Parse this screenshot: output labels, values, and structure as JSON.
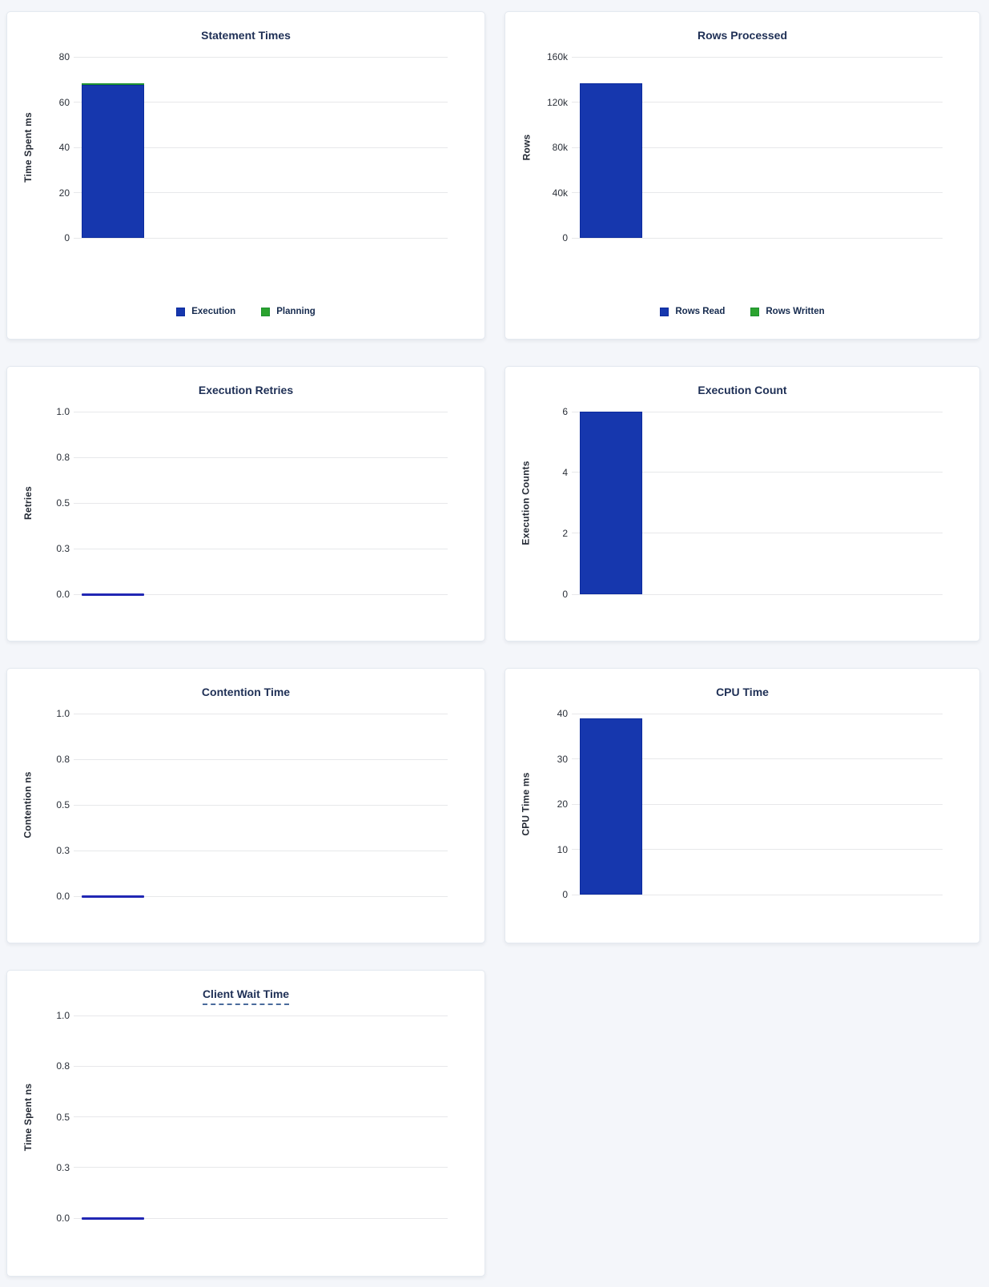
{
  "page": {
    "background_color": "#f4f6fa",
    "card_color": "#ffffff"
  },
  "colors": {
    "blue": "#1637ae",
    "blue_border": "#0c2b9e",
    "green": "#2ba32f",
    "green_border": "#1f9230",
    "zero_line": "#2127b4",
    "title_text": "#1e2f55",
    "tick_text": "#2b3039",
    "axis_label_text": "#242a35",
    "gridline": "#e7e8ea"
  },
  "chart_data": [
    {
      "id": "statement-times",
      "type": "bar",
      "title": "Statement Times",
      "ylabel": "Time Spent ms",
      "ymax": 80,
      "ymin": 0,
      "grid": true,
      "yticks": [
        "80",
        "60",
        "40",
        "20",
        "0"
      ],
      "series": [
        {
          "name": "Execution",
          "value": 67.5,
          "color": "blue"
        },
        {
          "name": "Planning",
          "value": 0.6,
          "color": "green"
        }
      ],
      "stacked": true,
      "legend_position": "bottom",
      "legend_items": [
        {
          "label": "Execution",
          "color": "blue"
        },
        {
          "label": "Planning",
          "color": "green"
        }
      ]
    },
    {
      "id": "rows-processed",
      "type": "bar",
      "title": "Rows Processed",
      "ylabel": "Rows",
      "ymax": 160000,
      "ymin": 0,
      "grid": true,
      "yticks": [
        "160k",
        "120k",
        "80k",
        "40k",
        "0"
      ],
      "series": [
        {
          "name": "Rows Read",
          "value": 137000,
          "color": "blue"
        },
        {
          "name": "Rows Written",
          "value": 0,
          "color": "green"
        }
      ],
      "stacked": true,
      "legend_position": "bottom",
      "legend_items": [
        {
          "label": "Rows Read",
          "color": "blue"
        },
        {
          "label": "Rows Written",
          "color": "green"
        }
      ]
    },
    {
      "id": "execution-retries",
      "type": "bar",
      "title": "Execution Retries",
      "ylabel": "Retries",
      "ymax": 1.0,
      "ymin": 0,
      "grid": true,
      "yticks": [
        "1.0",
        "0.8",
        "0.5",
        "0.3",
        "0.0"
      ],
      "series": [
        {
          "name": "Retries",
          "value": 0,
          "color": "blue"
        }
      ]
    },
    {
      "id": "execution-count",
      "type": "bar",
      "title": "Execution Count",
      "ylabel": "Execution Counts",
      "ymax": 6,
      "ymin": 0,
      "grid": true,
      "yticks": [
        "6",
        "4",
        "2",
        "0"
      ],
      "series": [
        {
          "name": "Execution Counts",
          "value": 6,
          "color": "blue"
        }
      ]
    },
    {
      "id": "contention-time",
      "type": "bar",
      "title": "Contention Time",
      "ylabel": "Contention ns",
      "ymax": 1.0,
      "ymin": 0,
      "grid": true,
      "yticks": [
        "1.0",
        "0.8",
        "0.5",
        "0.3",
        "0.0"
      ],
      "series": [
        {
          "name": "Contention",
          "value": 0,
          "color": "blue"
        }
      ]
    },
    {
      "id": "cpu-time",
      "type": "bar",
      "title": "CPU Time",
      "ylabel": "CPU Time ms",
      "ymax": 40,
      "ymin": 0,
      "grid": true,
      "yticks": [
        "40",
        "30",
        "20",
        "10",
        "0"
      ],
      "series": [
        {
          "name": "CPU Time",
          "value": 39,
          "color": "blue"
        }
      ]
    },
    {
      "id": "client-wait-time",
      "type": "bar",
      "title": "Client Wait Time",
      "title_underline": true,
      "ylabel": "Time Spent ns",
      "ymax": 1.0,
      "ymin": 0,
      "grid": true,
      "yticks": [
        "1.0",
        "0.8",
        "0.5",
        "0.3",
        "0.0"
      ],
      "series": [
        {
          "name": "Time Spent",
          "value": 0,
          "color": "blue"
        }
      ]
    }
  ]
}
